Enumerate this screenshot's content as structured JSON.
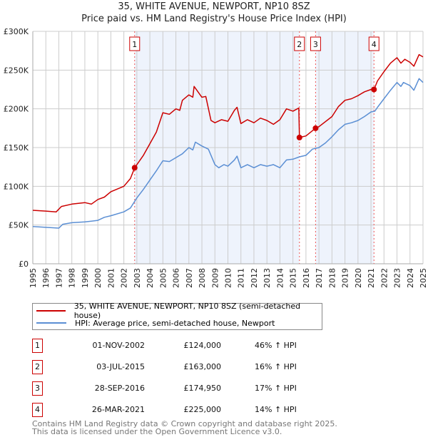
{
  "header": {
    "title": "35, WHITE AVENUE, NEWPORT, NP10 8SZ",
    "subtitle": "Price paid vs. HM Land Registry's House Price Index (HPI)"
  },
  "colors": {
    "property": "#cc0000",
    "hpi": "#5b8fd4",
    "shade": "#eef3fc",
    "grid": "#cccccc"
  },
  "chart_data": {
    "type": "line",
    "title": "Price paid vs. HM Land Registry's House Price Index (HPI)",
    "xlim": [
      1995,
      2025
    ],
    "ylim": [
      0,
      300000
    ],
    "y_ticks": [
      0,
      50000,
      100000,
      150000,
      200000,
      250000,
      300000
    ],
    "y_tick_labels": [
      "£0",
      "£50K",
      "£100K",
      "£150K",
      "£200K",
      "£250K",
      "£300K"
    ],
    "x_tick_labels": [
      "1995",
      "1996",
      "1997",
      "1998",
      "1999",
      "2000",
      "2001",
      "2002",
      "2003",
      "2004",
      "2005",
      "2006",
      "2007",
      "2008",
      "2009",
      "2010",
      "2011",
      "2012",
      "2013",
      "2014",
      "2015",
      "2016",
      "2017",
      "2018",
      "2019",
      "2020",
      "2021",
      "2022",
      "2023",
      "2024",
      "2025"
    ],
    "grid": true,
    "legend_position": "bottom",
    "series": [
      {
        "name": "35, WHITE AVENUE, NEWPORT, NP10 8SZ (semi-detached house)",
        "x": [
          1995,
          1996,
          1996.8,
          1997.2,
          1998,
          1999,
          1999.5,
          2000,
          2000.5,
          2001,
          2002,
          2002.5,
          2002.83,
          2003.5,
          2004,
          2004.5,
          2005,
          2005.5,
          2006,
          2006.3,
          2006.5,
          2007,
          2007.3,
          2007.4,
          2008,
          2008.3,
          2008.7,
          2009,
          2009.5,
          2010,
          2010.5,
          2010.7,
          2011,
          2011.5,
          2012,
          2012.5,
          2013,
          2013.5,
          2014,
          2014.5,
          2015,
          2015.45,
          2015.5,
          2016,
          2016.74,
          2017,
          2018,
          2018.5,
          2019,
          2019.5,
          2020,
          2020.5,
          2021,
          2021.23,
          2021.5,
          2022,
          2022.5,
          2023,
          2023.3,
          2023.6,
          2024,
          2024.3,
          2024.7,
          2025
        ],
        "y": [
          69000,
          68000,
          67000,
          74000,
          77000,
          79000,
          77000,
          83000,
          86000,
          93000,
          100000,
          110000,
          124000,
          140000,
          155000,
          170000,
          195000,
          193000,
          200000,
          198000,
          211000,
          218000,
          215000,
          229000,
          215000,
          216000,
          185000,
          182000,
          186000,
          184000,
          198000,
          202000,
          181000,
          186000,
          182000,
          188000,
          185000,
          180000,
          186000,
          200000,
          197000,
          201000,
          163000,
          165000,
          175000,
          177000,
          190000,
          203000,
          211000,
          213000,
          217000,
          222000,
          225000,
          225000,
          236000,
          248000,
          259000,
          266000,
          259000,
          264000,
          260000,
          255000,
          270000,
          267000
        ]
      },
      {
        "name": "HPI: Average price, semi-detached house, Newport",
        "x": [
          1995,
          1996,
          1997,
          1997.3,
          1998,
          1999,
          2000,
          2000.5,
          2001,
          2002,
          2002.5,
          2003,
          2003.5,
          2004,
          2004.5,
          2005,
          2005.5,
          2006,
          2006.5,
          2007,
          2007.3,
          2007.5,
          2008,
          2008.5,
          2009,
          2009.3,
          2009.7,
          2010,
          2010.5,
          2010.7,
          2011,
          2011.5,
          2012,
          2012.5,
          2013,
          2013.5,
          2014,
          2014.5,
          2015,
          2015.5,
          2016,
          2016.5,
          2017,
          2017.5,
          2018,
          2018.5,
          2019,
          2019.5,
          2020,
          2020.5,
          2021,
          2021.3,
          2021.5,
          2022,
          2022.5,
          2023,
          2023.3,
          2023.5,
          2024,
          2024.3,
          2024.7,
          2025
        ],
        "y": [
          48000,
          47000,
          46000,
          51000,
          53000,
          54000,
          56000,
          60000,
          62000,
          67000,
          72000,
          85000,
          96000,
          108000,
          120000,
          133000,
          132000,
          137000,
          142000,
          150000,
          147000,
          157000,
          152000,
          148000,
          128000,
          124000,
          128000,
          126000,
          134000,
          139000,
          124000,
          128000,
          124000,
          128000,
          126000,
          128000,
          124000,
          134000,
          135000,
          138000,
          140000,
          148000,
          150000,
          156000,
          164000,
          173000,
          180000,
          182000,
          185000,
          190000,
          196000,
          197000,
          202000,
          213000,
          224000,
          234000,
          229000,
          234000,
          230000,
          224000,
          239000,
          234000
        ]
      }
    ],
    "sales": [
      {
        "label": "1",
        "x": 2002.83,
        "y": 124000
      },
      {
        "label": "2",
        "x": 2015.5,
        "y": 163000
      },
      {
        "label": "3",
        "x": 2016.74,
        "y": 174950
      },
      {
        "label": "4",
        "x": 2021.23,
        "y": 225000
      }
    ],
    "shaded_ranges": [
      [
        2002.83,
        2015.5
      ],
      [
        2016.74,
        2021.23
      ]
    ]
  },
  "legend": {
    "property": "35, WHITE AVENUE, NEWPORT, NP10 8SZ (semi-detached house)",
    "hpi": "HPI: Average price, semi-detached house, Newport"
  },
  "transactions": [
    {
      "num": "1",
      "date": "01-NOV-2002",
      "price": "£124,000",
      "hpi": "46% ↑ HPI"
    },
    {
      "num": "2",
      "date": "03-JUL-2015",
      "price": "£163,000",
      "hpi": "16% ↑ HPI"
    },
    {
      "num": "3",
      "date": "28-SEP-2016",
      "price": "£174,950",
      "hpi": "17% ↑ HPI"
    },
    {
      "num": "4",
      "date": "26-MAR-2021",
      "price": "£225,000",
      "hpi": "14% ↑ HPI"
    }
  ],
  "footer": {
    "line1": "Contains HM Land Registry data © Crown copyright and database right 2025.",
    "line2": "This data is licensed under the Open Government Licence v3.0."
  }
}
